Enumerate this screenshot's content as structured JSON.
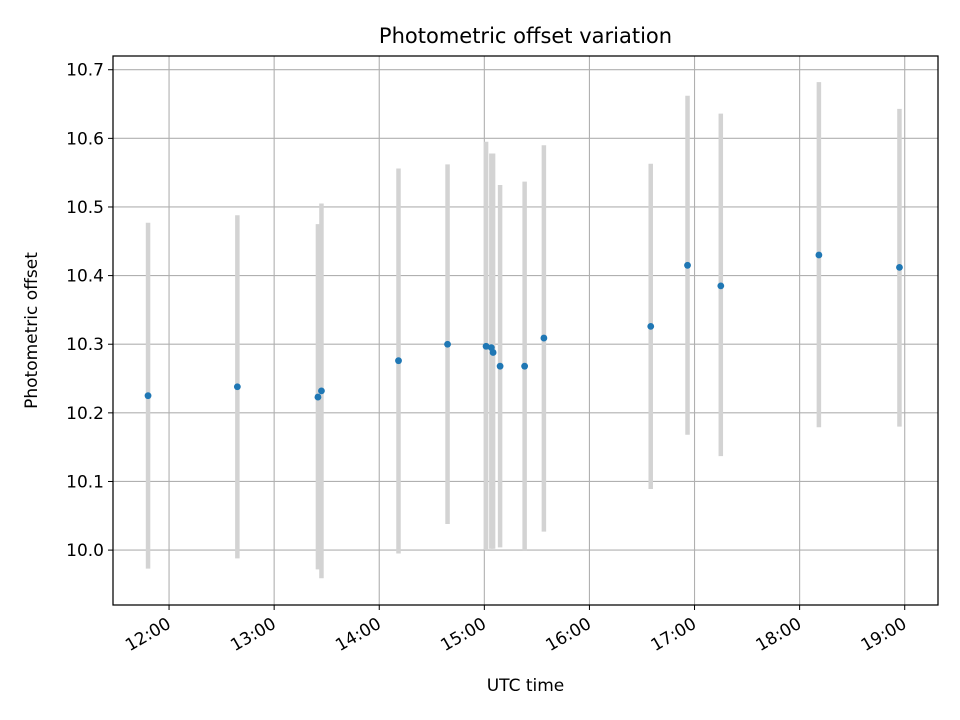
{
  "chart_data": {
    "type": "scatter",
    "title": "Photometric offset variation",
    "xlabel": "UTC time",
    "ylabel": "Photometric offset",
    "x_unit": "hours (UTC)",
    "xlim": [
      "11:28",
      "19:19"
    ],
    "ylim": [
      9.92,
      10.72
    ],
    "x_ticks": [
      "12:00",
      "13:00",
      "14:00",
      "15:00",
      "16:00",
      "17:00",
      "18:00",
      "19:00"
    ],
    "y_ticks": [
      "10.0",
      "10.1",
      "10.2",
      "10.3",
      "10.4",
      "10.5",
      "10.6",
      "10.7"
    ],
    "grid": true,
    "marker_color": "#1f77b4",
    "errorbar_color": "#d3d3d3",
    "points": [
      {
        "x": "11:48",
        "y": 10.225,
        "ylo": 9.973,
        "yhi": 10.477
      },
      {
        "x": "12:39",
        "y": 10.238,
        "ylo": 9.988,
        "yhi": 10.488
      },
      {
        "x": "13:25",
        "y": 10.223,
        "ylo": 9.972,
        "yhi": 10.475
      },
      {
        "x": "13:27",
        "y": 10.232,
        "ylo": 9.959,
        "yhi": 10.505
      },
      {
        "x": "14:11",
        "y": 10.276,
        "ylo": 9.995,
        "yhi": 10.556
      },
      {
        "x": "14:39",
        "y": 10.3,
        "ylo": 10.038,
        "yhi": 10.562
      },
      {
        "x": "15:01",
        "y": 10.297,
        "ylo": 10.0,
        "yhi": 10.595
      },
      {
        "x": "15:04",
        "y": 10.295,
        "ylo": 10.002,
        "yhi": 10.578
      },
      {
        "x": "15:05",
        "y": 10.288,
        "ylo": 10.002,
        "yhi": 10.578
      },
      {
        "x": "15:09",
        "y": 10.268,
        "ylo": 10.004,
        "yhi": 10.532
      },
      {
        "x": "15:23",
        "y": 10.268,
        "ylo": 10.0,
        "yhi": 10.537
      },
      {
        "x": "15:34",
        "y": 10.309,
        "ylo": 10.027,
        "yhi": 10.59
      },
      {
        "x": "16:35",
        "y": 10.326,
        "ylo": 10.089,
        "yhi": 10.563
      },
      {
        "x": "16:56",
        "y": 10.415,
        "ylo": 10.168,
        "yhi": 10.662
      },
      {
        "x": "17:15",
        "y": 10.385,
        "ylo": 10.137,
        "yhi": 10.636
      },
      {
        "x": "18:11",
        "y": 10.43,
        "ylo": 10.179,
        "yhi": 10.682
      },
      {
        "x": "18:57",
        "y": 10.412,
        "ylo": 10.18,
        "yhi": 10.643
      }
    ]
  }
}
